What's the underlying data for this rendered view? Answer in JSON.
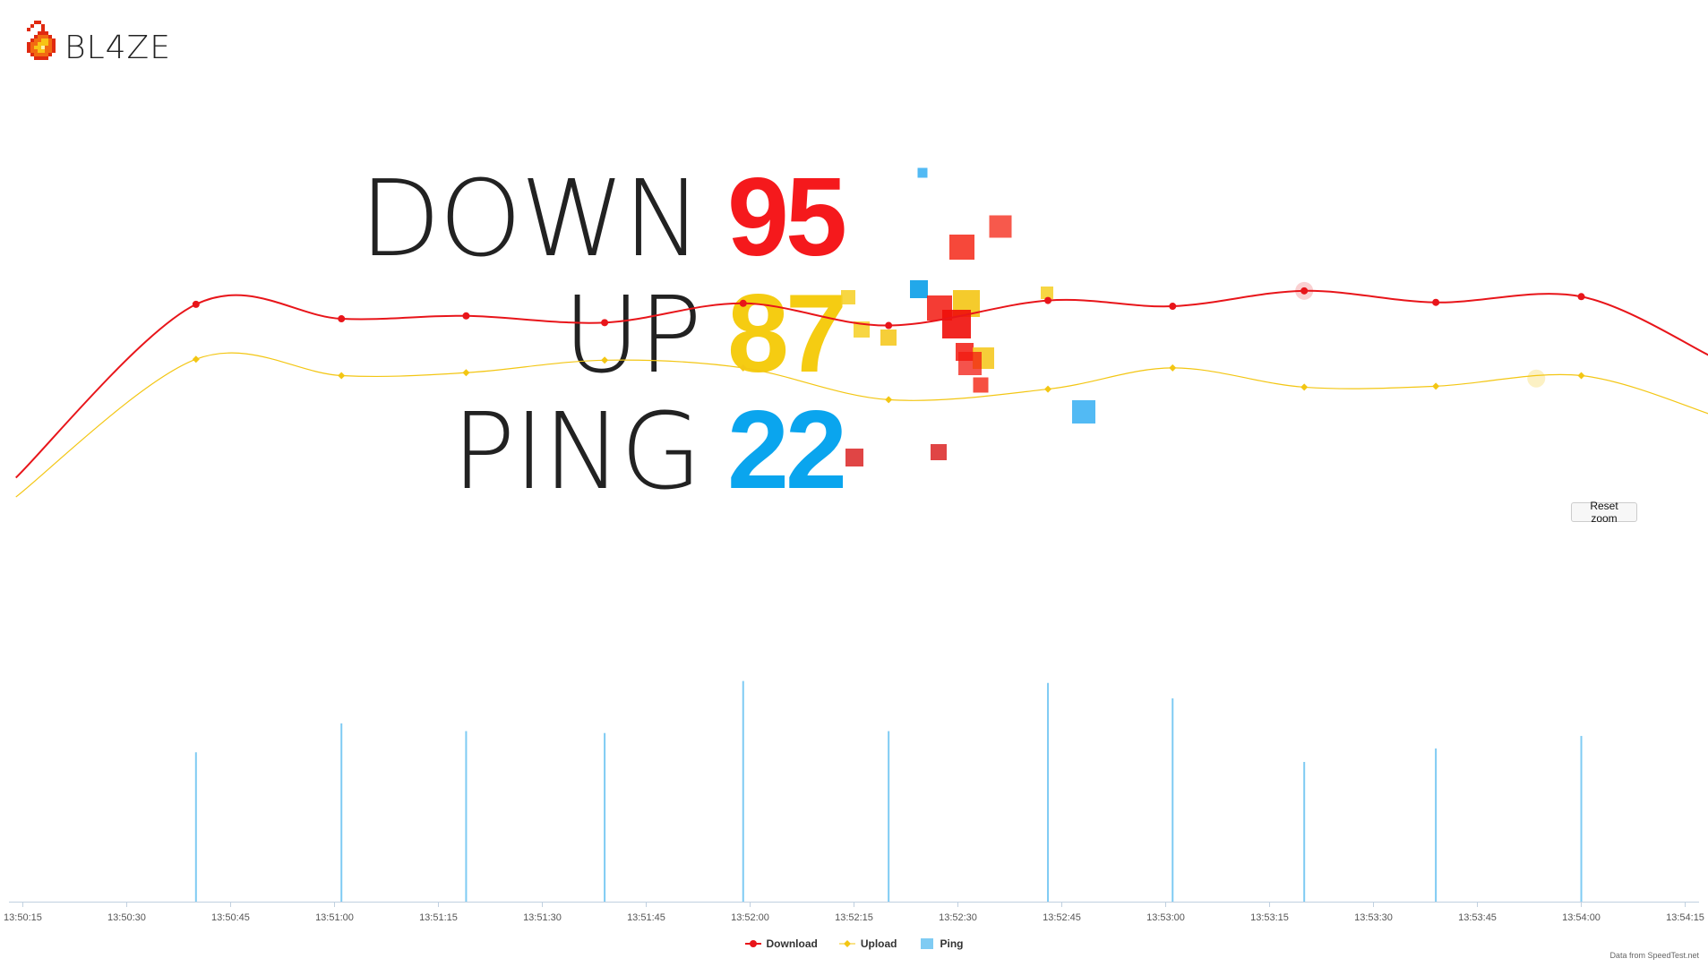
{
  "app": {
    "name": "BL4ZE",
    "credit": "Data from SpeedTest.net",
    "reset_zoom_label": "Reset zoom"
  },
  "stats": {
    "down": {
      "label": "DOWN",
      "value": "95",
      "color": "#f5191c"
    },
    "up": {
      "label": "UP",
      "value": "87",
      "color": "#f5cc12"
    },
    "ping": {
      "label": "PING",
      "value": "22",
      "color": "#0aa5ee"
    }
  },
  "chart_data": {
    "type": "line",
    "x_tick_labels": [
      "13:50:15",
      "13:50:30",
      "13:50:45",
      "13:51:00",
      "13:51:15",
      "13:51:30",
      "13:51:45",
      "13:52:00",
      "13:52:15",
      "13:52:30",
      "13:52:45",
      "13:53:00",
      "13:53:15",
      "13:53:30",
      "13:53:45",
      "13:54:00",
      "13:54:15"
    ],
    "xlim_seconds": [
      13,
      257
    ],
    "series": [
      {
        "name": "Download",
        "type": "spline",
        "color": "#e8151a",
        "x": [
          14,
          40,
          61,
          79,
          99,
          119,
          140,
          163,
          181,
          200,
          219,
          240,
          259
        ],
        "y": [
          88,
          124,
          121,
          121.6,
          120.2,
          124.2,
          119.6,
          124.8,
          123.6,
          126.8,
          124.4,
          125.6,
          113
        ]
      },
      {
        "name": "Upload",
        "type": "spline",
        "color": "#f3c613",
        "x": [
          14,
          40,
          61,
          79,
          99,
          119,
          140,
          163,
          181,
          200,
          219,
          240,
          259
        ],
        "y": [
          84,
          112.6,
          109.2,
          109.8,
          112.4,
          110.8,
          104.2,
          106.4,
          110.8,
          106.8,
          107,
          109.2,
          101
        ]
      },
      {
        "name": "Ping",
        "type": "column",
        "color": "#7fcbf3",
        "x": [
          40,
          61,
          79,
          99,
          119,
          140,
          163,
          181,
          200,
          219,
          240
        ],
        "y": [
          31,
          37,
          35.4,
          35,
          45.8,
          35.4,
          45.4,
          42.2,
          29,
          31.8,
          34.4
        ]
      }
    ],
    "ylim": [
      0,
      150
    ],
    "legend_position": "bottom-center"
  },
  "scatter": {
    "squares": [
      {
        "x": 1030,
        "y": 193,
        "s": 11,
        "color": "#3fb3f3",
        "op": 0.9
      },
      {
        "x": 1117,
        "y": 253,
        "s": 25,
        "color": "#f5301f",
        "op": 0.8
      },
      {
        "x": 1074,
        "y": 276,
        "s": 28,
        "color": "#f52818",
        "op": 0.85
      },
      {
        "x": 947,
        "y": 332,
        "s": 16,
        "color": "#f6cf22",
        "op": 0.85
      },
      {
        "x": 1026,
        "y": 323,
        "s": 20,
        "color": "#0a9ee8",
        "op": 0.9
      },
      {
        "x": 1169,
        "y": 327,
        "s": 14,
        "color": "#f6cf22",
        "op": 0.85
      },
      {
        "x": 1049,
        "y": 344,
        "s": 28,
        "color": "#f21a10",
        "op": 0.85
      },
      {
        "x": 1079,
        "y": 339,
        "s": 30,
        "color": "#f4c515",
        "op": 0.9
      },
      {
        "x": 1068,
        "y": 362,
        "s": 32,
        "color": "#f00e0a",
        "op": 0.9
      },
      {
        "x": 962,
        "y": 368,
        "s": 18,
        "color": "#f6cf22",
        "op": 0.85
      },
      {
        "x": 992,
        "y": 377,
        "s": 18,
        "color": "#f4c515",
        "op": 0.85
      },
      {
        "x": 1077,
        "y": 393,
        "s": 20,
        "color": "#f21a10",
        "op": 0.85
      },
      {
        "x": 1098,
        "y": 400,
        "s": 24,
        "color": "#f4c515",
        "op": 0.85
      },
      {
        "x": 1083,
        "y": 406,
        "s": 26,
        "color": "#f21a10",
        "op": 0.75
      },
      {
        "x": 1095,
        "y": 430,
        "s": 17,
        "color": "#f53020",
        "op": 0.85
      },
      {
        "x": 1210,
        "y": 460,
        "s": 26,
        "color": "#3fb3f3",
        "op": 0.9
      },
      {
        "x": 1048,
        "y": 505,
        "s": 18,
        "color": "#d81616",
        "op": 0.8
      },
      {
        "x": 954,
        "y": 511,
        "s": 20,
        "color": "#d81616",
        "op": 0.8
      }
    ]
  }
}
